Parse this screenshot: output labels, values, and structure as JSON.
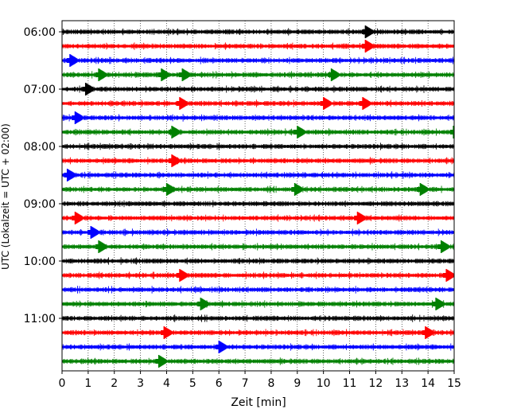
{
  "chart_data": {
    "type": "line",
    "xlabel": "Zeit  [min]",
    "ylabel": "UTC (Lokalzeit = UTC + 02:00)",
    "xlim": [
      0,
      15
    ],
    "x_ticks": [
      "0",
      "1",
      "2",
      "3",
      "4",
      "5",
      "6",
      "7",
      "8",
      "9",
      "10",
      "11",
      "12",
      "13",
      "14",
      "15"
    ],
    "y_ticks": [
      {
        "label": "06:00",
        "row": 0
      },
      {
        "label": "07:00",
        "row": 4
      },
      {
        "label": "08:00",
        "row": 8
      },
      {
        "label": "09:00",
        "row": 12
      },
      {
        "label": "10:00",
        "row": 16
      },
      {
        "label": "11:00",
        "row": 20
      }
    ],
    "grid": "vertical dotted at each minute",
    "trace_colors": [
      "#000000",
      "#ff0000",
      "#0000ff",
      "#008000"
    ],
    "traces": [
      {
        "start": "06:00",
        "events_min": [
          11.6
        ]
      },
      {
        "start": "06:15",
        "events_min": [
          11.6
        ]
      },
      {
        "start": "06:30",
        "events_min": [
          0.3
        ]
      },
      {
        "start": "06:45",
        "events_min": [
          1.4,
          3.8,
          4.6,
          10.3
        ]
      },
      {
        "start": "07:00",
        "events_min": [
          0.9
        ]
      },
      {
        "start": "07:15",
        "events_min": [
          4.5,
          10.0,
          11.5
        ]
      },
      {
        "start": "07:30",
        "events_min": [
          0.5
        ]
      },
      {
        "start": "07:45",
        "events_min": [
          4.2,
          9.0,
          15.0
        ]
      },
      {
        "start": "08:00",
        "events_min": []
      },
      {
        "start": "08:15",
        "events_min": [
          4.2
        ]
      },
      {
        "start": "08:30",
        "events_min": [
          0.2
        ]
      },
      {
        "start": "08:45",
        "events_min": [
          4.0,
          8.9,
          13.7
        ]
      },
      {
        "start": "09:00",
        "events_min": []
      },
      {
        "start": "09:15",
        "events_min": [
          0.5,
          11.3
        ]
      },
      {
        "start": "09:30",
        "events_min": [
          1.1
        ]
      },
      {
        "start": "09:45",
        "events_min": [
          1.4,
          14.5
        ]
      },
      {
        "start": "10:00",
        "events_min": []
      },
      {
        "start": "10:15",
        "events_min": [
          4.5,
          14.7
        ]
      },
      {
        "start": "10:30",
        "events_min": []
      },
      {
        "start": "10:45",
        "events_min": [
          5.3,
          14.3
        ]
      },
      {
        "start": "11:00",
        "events_min": []
      },
      {
        "start": "11:15",
        "events_min": [
          3.9,
          13.9
        ]
      },
      {
        "start": "11:30",
        "events_min": [
          6.0
        ]
      },
      {
        "start": "11:45",
        "events_min": [
          3.7
        ]
      }
    ]
  }
}
